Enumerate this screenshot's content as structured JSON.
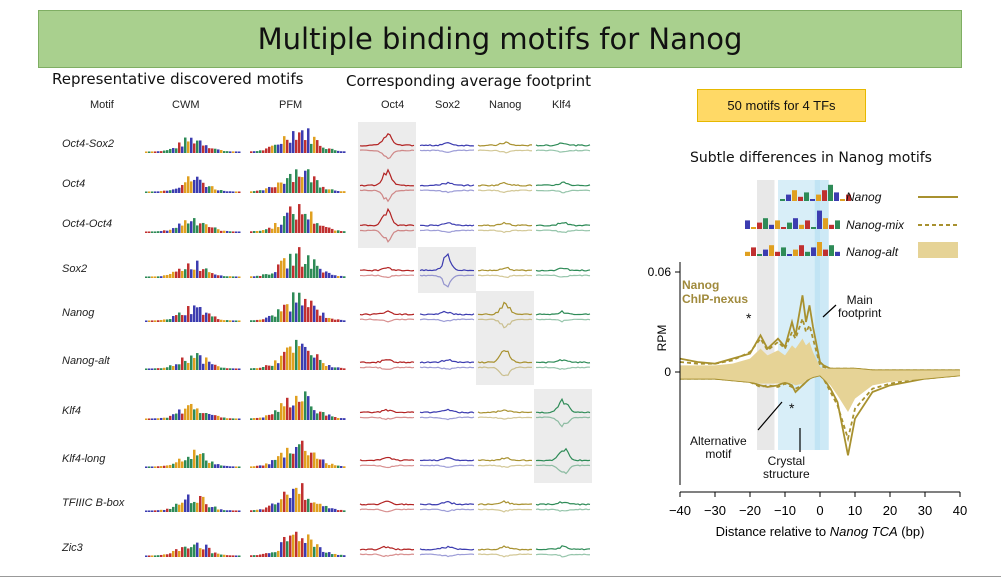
{
  "title": "Multiple binding motifs for Nanog",
  "left_header": "Representative discovered motifs",
  "mid_header": "Corresponding average footprint",
  "col_headers": [
    "Motif",
    "CWM",
    "PFM"
  ],
  "tf_headers": [
    "Oct4",
    "Sox2",
    "Nanog",
    "Klf4"
  ],
  "motifs": [
    "Oct4-Sox2",
    "Oct4",
    "Oct4-Oct4",
    "Sox2",
    "Nanog",
    "Nanog-alt",
    "Klf4",
    "Klf4-long",
    "TFIIIC B-box",
    "Zic3"
  ],
  "badge": "50 motifs for 4 TFs",
  "subtitle": "Subtle differences in Nanog motifs",
  "legend": [
    {
      "label": "Nanog",
      "style": "solid"
    },
    {
      "label": "Nanog-mix",
      "style": "dashed"
    },
    {
      "label": "Nanog-alt",
      "style": "filled"
    }
  ],
  "annotations": {
    "chip": "Nanog\nChIP-nexus",
    "star": "*",
    "main_footprint": "Main\nfootprint",
    "alternative_motif": "Alternative\nmotif",
    "crystal_structure": "Crystal\nstructure"
  },
  "colors": {
    "oct4": "#b22222",
    "sox2": "#3c3cb0",
    "nanog": "#a8912f",
    "klf4": "#2e8b57",
    "banner": "#a9d08e",
    "badge": "#ffd966",
    "highlight": "#b8e0f2"
  },
  "chart_data": {
    "type": "line",
    "title": "Subtle differences in Nanog motifs",
    "xlabel_prefix": "Distance relative to ",
    "xlabel_italic": "Nanog TCA",
    "xlabel_suffix": " (bp)",
    "ylabel": "RPM",
    "xlim": [
      -40,
      40
    ],
    "xticks": [
      -40,
      -30,
      -20,
      -10,
      0,
      10,
      20,
      30,
      40
    ],
    "ylim": [
      -0.06,
      0.06
    ],
    "yticks": [
      0,
      0.06
    ],
    "ytick_labels": [
      "0",
      "0.06"
    ],
    "series": [
      {
        "name": "Nanog",
        "style": "solid",
        "x": [
          -40,
          -35,
          -30,
          -25,
          -20,
          -17,
          -15,
          -12,
          -10,
          -8,
          -7,
          -5,
          -4,
          -3,
          -2,
          0,
          1,
          3,
          5,
          8,
          10,
          15,
          20,
          25,
          30,
          35,
          40
        ],
        "y": [
          0.008,
          0.006,
          0.005,
          0.008,
          0.011,
          0.022,
          0.014,
          0.02,
          0.015,
          0.03,
          0.022,
          0.046,
          0.03,
          0.04,
          0.027,
          0.006,
          0.004,
          0.002,
          0.002,
          0.002,
          0.002,
          0.001,
          0.001,
          0.001,
          0.001,
          0.001,
          0.001
        ],
        "y_neg": [
          -0.004,
          -0.004,
          -0.004,
          -0.005,
          -0.006,
          -0.008,
          -0.009,
          -0.008,
          -0.006,
          -0.008,
          -0.012,
          -0.008,
          -0.006,
          -0.004,
          -0.003,
          -0.002,
          -0.004,
          -0.01,
          -0.018,
          -0.05,
          -0.028,
          -0.012,
          -0.008,
          -0.006,
          -0.004,
          -0.003,
          -0.002
        ]
      },
      {
        "name": "Nanog-mix",
        "style": "dashed",
        "x": [
          -40,
          -35,
          -30,
          -25,
          -20,
          -17,
          -15,
          -12,
          -10,
          -8,
          -7,
          -5,
          -4,
          -3,
          -2,
          0,
          1,
          3,
          5,
          8,
          10,
          15,
          20,
          25,
          30,
          35,
          40
        ],
        "y": [
          0.006,
          0.005,
          0.005,
          0.007,
          0.012,
          0.02,
          0.013,
          0.018,
          0.014,
          0.024,
          0.02,
          0.032,
          0.024,
          0.028,
          0.02,
          0.004,
          0.003,
          0.002,
          0.002,
          0.002,
          0.002,
          0.001,
          0.001,
          0.001,
          0.001,
          0.001,
          0.001
        ],
        "y_neg": [
          -0.004,
          -0.004,
          -0.004,
          -0.005,
          -0.006,
          -0.009,
          -0.008,
          -0.009,
          -0.007,
          -0.009,
          -0.01,
          -0.008,
          -0.006,
          -0.004,
          -0.003,
          -0.002,
          -0.004,
          -0.012,
          -0.02,
          -0.04,
          -0.022,
          -0.01,
          -0.007,
          -0.005,
          -0.004,
          -0.003,
          -0.002
        ]
      },
      {
        "name": "Nanog-alt",
        "style": "filled",
        "x": [
          -40,
          -35,
          -30,
          -25,
          -20,
          -17,
          -15,
          -12,
          -10,
          -8,
          -7,
          -5,
          -4,
          -3,
          -2,
          0,
          1,
          3,
          5,
          8,
          10,
          15,
          20,
          25,
          30,
          35,
          40
        ],
        "y": [
          0.004,
          0.004,
          0.004,
          0.005,
          0.008,
          0.014,
          0.01,
          0.013,
          0.01,
          0.016,
          0.014,
          0.02,
          0.016,
          0.018,
          0.012,
          0.003,
          0.002,
          0.002,
          0.002,
          0.002,
          0.002,
          0.001,
          0.001,
          0.001,
          0.001,
          0.001,
          0.001
        ],
        "y_neg": [
          -0.004,
          -0.004,
          -0.004,
          -0.005,
          -0.006,
          -0.007,
          -0.007,
          -0.007,
          -0.006,
          -0.007,
          -0.008,
          -0.007,
          -0.005,
          -0.004,
          -0.003,
          -0.002,
          -0.004,
          -0.008,
          -0.014,
          -0.024,
          -0.016,
          -0.008,
          -0.006,
          -0.005,
          -0.004,
          -0.003,
          -0.002
        ]
      }
    ]
  }
}
